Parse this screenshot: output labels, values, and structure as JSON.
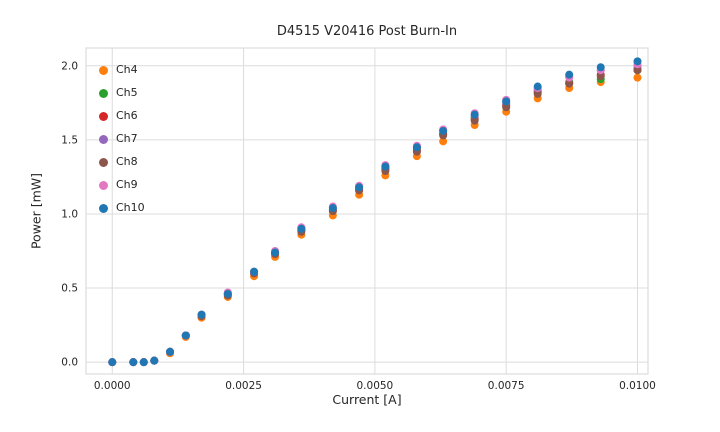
{
  "chart_data": {
    "type": "scatter",
    "title": "D4515 V20416 Post Burn-In",
    "xlabel": "Current [A]",
    "ylabel": "Power [mW]",
    "grid": true,
    "grid_color": "#dcdcdc",
    "legend_position": "upper left",
    "xlim": [
      -0.0005,
      0.0102
    ],
    "ylim": [
      -0.08,
      2.12
    ],
    "x_ticks": [
      0.0,
      0.0025,
      0.005,
      0.0075,
      0.01
    ],
    "x_tick_labels": [
      "0.0000",
      "0.0025",
      "0.0050",
      "0.0075",
      "0.0100"
    ],
    "y_ticks": [
      0.0,
      0.5,
      1.0,
      1.5,
      2.0
    ],
    "y_tick_labels": [
      "0.0",
      "0.5",
      "1.0",
      "1.5",
      "2.0"
    ],
    "x": [
      0.0,
      0.0004,
      0.0006,
      0.0008,
      0.0011,
      0.0014,
      0.0017,
      0.0022,
      0.0027,
      0.0031,
      0.0036,
      0.0042,
      0.0047,
      0.0052,
      0.0058,
      0.0063,
      0.0069,
      0.0075,
      0.0081,
      0.0087,
      0.0093,
      0.01
    ],
    "series": [
      {
        "name": "Ch4",
        "color": "#ff7f0e",
        "values": [
          0.0,
          0.0,
          0.0,
          0.01,
          0.06,
          0.17,
          0.3,
          0.44,
          0.58,
          0.71,
          0.86,
          0.99,
          1.13,
          1.26,
          1.39,
          1.49,
          1.6,
          1.69,
          1.78,
          1.85,
          1.89,
          1.92
        ]
      },
      {
        "name": "Ch5",
        "color": "#2ca02c",
        "values": [
          0.0,
          0.0,
          0.0,
          0.01,
          0.07,
          0.18,
          0.32,
          0.46,
          0.61,
          0.74,
          0.89,
          1.03,
          1.17,
          1.31,
          1.44,
          1.54,
          1.65,
          1.74,
          1.83,
          1.89,
          1.91,
          1.97
        ]
      },
      {
        "name": "Ch6",
        "color": "#d62728",
        "values": [
          0.0,
          0.0,
          0.0,
          0.01,
          0.07,
          0.18,
          0.32,
          0.46,
          0.6,
          0.73,
          0.89,
          1.02,
          1.16,
          1.3,
          1.43,
          1.54,
          1.64,
          1.73,
          1.82,
          1.88,
          1.94,
          1.98
        ]
      },
      {
        "name": "Ch7",
        "color": "#9467bd",
        "values": [
          0.0,
          0.0,
          0.0,
          0.01,
          0.07,
          0.18,
          0.32,
          0.46,
          0.61,
          0.74,
          0.9,
          1.04,
          1.18,
          1.32,
          1.45,
          1.56,
          1.66,
          1.75,
          1.84,
          1.93,
          1.97,
          2.0
        ]
      },
      {
        "name": "Ch8",
        "color": "#8c564b",
        "values": [
          0.0,
          0.0,
          0.0,
          0.01,
          0.07,
          0.18,
          0.31,
          0.45,
          0.6,
          0.73,
          0.88,
          1.02,
          1.16,
          1.29,
          1.42,
          1.53,
          1.63,
          1.72,
          1.81,
          1.88,
          1.93,
          1.97
        ]
      },
      {
        "name": "Ch9",
        "color": "#e377c2",
        "values": [
          0.0,
          0.0,
          0.0,
          0.01,
          0.07,
          0.18,
          0.32,
          0.47,
          0.61,
          0.75,
          0.91,
          1.05,
          1.19,
          1.33,
          1.46,
          1.57,
          1.68,
          1.77,
          1.85,
          1.92,
          1.97,
          2.01
        ]
      },
      {
        "name": "Ch10",
        "color": "#1f77b4",
        "values": [
          0.0,
          0.0,
          0.0,
          0.01,
          0.07,
          0.18,
          0.32,
          0.46,
          0.61,
          0.74,
          0.9,
          1.04,
          1.18,
          1.32,
          1.45,
          1.56,
          1.67,
          1.76,
          1.86,
          1.94,
          1.99,
          2.03
        ]
      }
    ]
  }
}
